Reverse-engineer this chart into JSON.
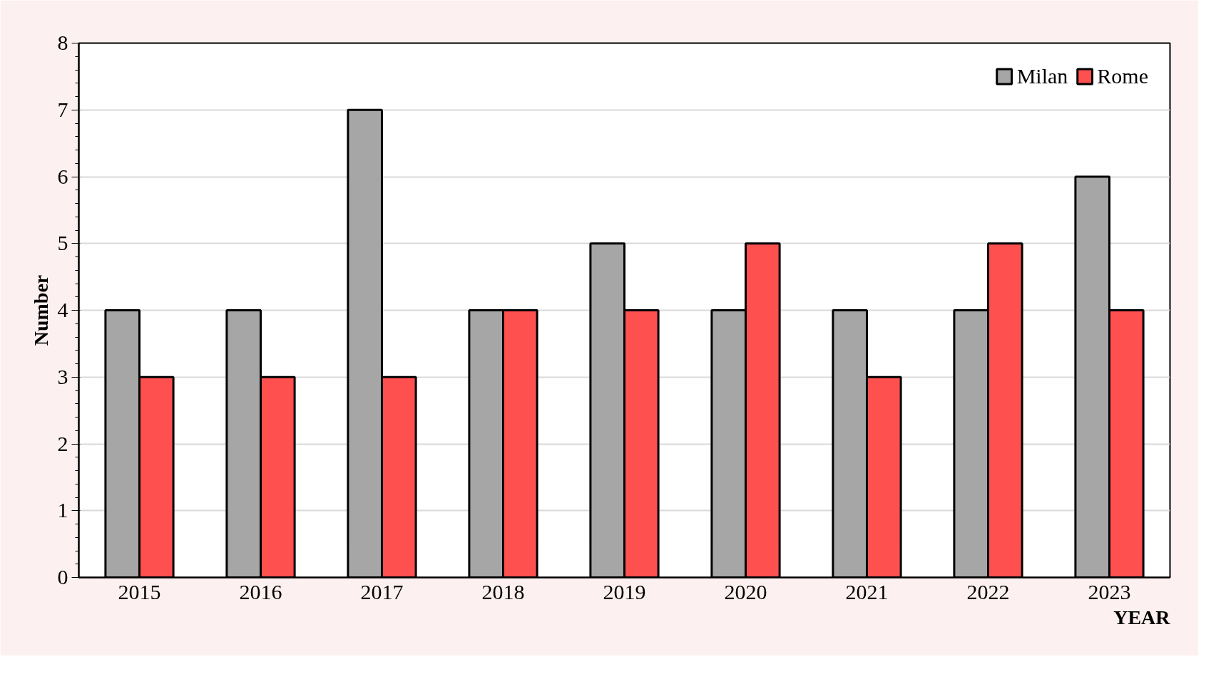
{
  "chart_data": {
    "type": "bar",
    "xlabel": "YEAR",
    "ylabel": "Number",
    "categories": [
      "2015",
      "2016",
      "2017",
      "2018",
      "2019",
      "2020",
      "2021",
      "2022",
      "2023"
    ],
    "series": [
      {
        "name": "Milan",
        "color": "#a6a6a6",
        "values": [
          4,
          4,
          7,
          4,
          5,
          4,
          4,
          4,
          6
        ]
      },
      {
        "name": "Rome",
        "color": "#ff5050",
        "values": [
          3,
          3,
          3,
          4,
          4,
          5,
          3,
          5,
          4
        ]
      }
    ],
    "ylim": [
      0,
      8
    ],
    "yticks": [
      0,
      1,
      2,
      3,
      4,
      5,
      6,
      7,
      8
    ],
    "grid": "y",
    "legend": "top right"
  }
}
